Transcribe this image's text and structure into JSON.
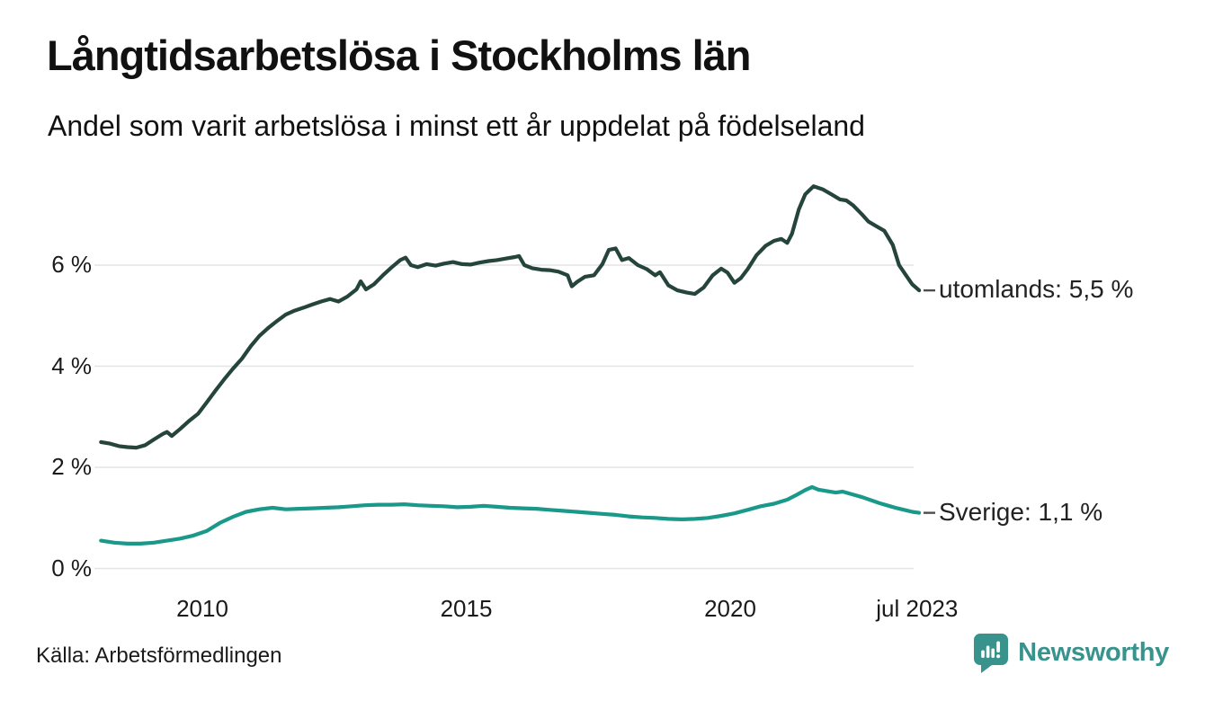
{
  "header": {
    "title": "Långtidsarbetslösa i Stockholms län",
    "subtitle": "Andel som varit arbetslösa i minst ett år uppdelat på födelseland"
  },
  "chart_data": {
    "type": "line",
    "title": "Långtidsarbetslösa i Stockholms län",
    "subtitle": "Andel som varit arbetslösa i minst ett år uppdelat på födelseland",
    "unit": "%",
    "grid": "horizontal",
    "xlim": [
      2008.0,
      2023.66
    ],
    "ylim": [
      0,
      8.2
    ],
    "x_ticks": [
      {
        "label": "2010",
        "year": 2010
      },
      {
        "label": "2015",
        "year": 2015
      },
      {
        "label": "2020",
        "year": 2020
      },
      {
        "label": "jul 2023",
        "year": 2023.54
      }
    ],
    "y_ticks": [
      {
        "label": "0 %",
        "value": 0
      },
      {
        "label": "2 %",
        "value": 2
      },
      {
        "label": "4 %",
        "value": 4
      },
      {
        "label": "6 %",
        "value": 6
      }
    ],
    "series": [
      {
        "name": "utomlands",
        "label": "utomlands: 5,5 %",
        "last_value_text": "5,5 %",
        "color": "#24443c",
        "points": [
          [
            2008.08,
            2.5
          ],
          [
            2008.25,
            2.47
          ],
          [
            2008.42,
            2.42
          ],
          [
            2008.58,
            2.4
          ],
          [
            2008.75,
            2.39
          ],
          [
            2008.92,
            2.44
          ],
          [
            2009.08,
            2.55
          ],
          [
            2009.25,
            2.66
          ],
          [
            2009.33,
            2.7
          ],
          [
            2009.42,
            2.62
          ],
          [
            2009.58,
            2.76
          ],
          [
            2009.75,
            2.92
          ],
          [
            2009.92,
            3.06
          ],
          [
            2010.08,
            3.28
          ],
          [
            2010.25,
            3.52
          ],
          [
            2010.42,
            3.75
          ],
          [
            2010.58,
            3.95
          ],
          [
            2010.75,
            4.15
          ],
          [
            2010.92,
            4.4
          ],
          [
            2011.08,
            4.6
          ],
          [
            2011.25,
            4.76
          ],
          [
            2011.42,
            4.9
          ],
          [
            2011.58,
            5.02
          ],
          [
            2011.75,
            5.1
          ],
          [
            2011.92,
            5.16
          ],
          [
            2012.08,
            5.22
          ],
          [
            2012.25,
            5.28
          ],
          [
            2012.42,
            5.33
          ],
          [
            2012.58,
            5.28
          ],
          [
            2012.75,
            5.38
          ],
          [
            2012.92,
            5.52
          ],
          [
            2013.0,
            5.68
          ],
          [
            2013.1,
            5.52
          ],
          [
            2013.25,
            5.62
          ],
          [
            2013.42,
            5.8
          ],
          [
            2013.58,
            5.95
          ],
          [
            2013.75,
            6.1
          ],
          [
            2013.85,
            6.15
          ],
          [
            2013.95,
            6.0
          ],
          [
            2014.08,
            5.96
          ],
          [
            2014.25,
            6.02
          ],
          [
            2014.42,
            5.99
          ],
          [
            2014.58,
            6.03
          ],
          [
            2014.75,
            6.06
          ],
          [
            2014.92,
            6.02
          ],
          [
            2015.08,
            6.01
          ],
          [
            2015.25,
            6.05
          ],
          [
            2015.42,
            6.08
          ],
          [
            2015.58,
            6.1
          ],
          [
            2015.75,
            6.13
          ],
          [
            2015.92,
            6.16
          ],
          [
            2016.0,
            6.18
          ],
          [
            2016.1,
            6.0
          ],
          [
            2016.25,
            5.94
          ],
          [
            2016.42,
            5.91
          ],
          [
            2016.58,
            5.9
          ],
          [
            2016.75,
            5.87
          ],
          [
            2016.92,
            5.8
          ],
          [
            2017.0,
            5.58
          ],
          [
            2017.1,
            5.67
          ],
          [
            2017.25,
            5.77
          ],
          [
            2017.42,
            5.8
          ],
          [
            2017.58,
            6.02
          ],
          [
            2017.7,
            6.3
          ],
          [
            2017.83,
            6.33
          ],
          [
            2017.95,
            6.1
          ],
          [
            2018.08,
            6.14
          ],
          [
            2018.25,
            6.0
          ],
          [
            2018.42,
            5.92
          ],
          [
            2018.58,
            5.8
          ],
          [
            2018.67,
            5.86
          ],
          [
            2018.83,
            5.6
          ],
          [
            2019.0,
            5.5
          ],
          [
            2019.17,
            5.46
          ],
          [
            2019.33,
            5.43
          ],
          [
            2019.5,
            5.56
          ],
          [
            2019.67,
            5.8
          ],
          [
            2019.83,
            5.93
          ],
          [
            2019.95,
            5.85
          ],
          [
            2020.08,
            5.65
          ],
          [
            2020.2,
            5.74
          ],
          [
            2020.33,
            5.92
          ],
          [
            2020.5,
            6.2
          ],
          [
            2020.67,
            6.38
          ],
          [
            2020.83,
            6.48
          ],
          [
            2020.97,
            6.52
          ],
          [
            2021.08,
            6.44
          ],
          [
            2021.17,
            6.62
          ],
          [
            2021.3,
            7.1
          ],
          [
            2021.42,
            7.4
          ],
          [
            2021.58,
            7.56
          ],
          [
            2021.75,
            7.5
          ],
          [
            2021.92,
            7.4
          ],
          [
            2022.08,
            7.3
          ],
          [
            2022.2,
            7.28
          ],
          [
            2022.33,
            7.18
          ],
          [
            2022.5,
            7.0
          ],
          [
            2022.62,
            6.86
          ],
          [
            2022.75,
            6.78
          ],
          [
            2022.92,
            6.68
          ],
          [
            2023.08,
            6.4
          ],
          [
            2023.2,
            6.0
          ],
          [
            2023.33,
            5.8
          ],
          [
            2023.45,
            5.62
          ],
          [
            2023.58,
            5.5
          ]
        ]
      },
      {
        "name": "Sverige",
        "label": "Sverige: 1,1 %",
        "last_value_text": "1,1 %",
        "color": "#1a998a",
        "points": [
          [
            2008.08,
            0.55
          ],
          [
            2008.33,
            0.51
          ],
          [
            2008.58,
            0.49
          ],
          [
            2008.83,
            0.49
          ],
          [
            2009.08,
            0.51
          ],
          [
            2009.33,
            0.55
          ],
          [
            2009.58,
            0.59
          ],
          [
            2009.83,
            0.65
          ],
          [
            2010.08,
            0.74
          ],
          [
            2010.33,
            0.9
          ],
          [
            2010.58,
            1.02
          ],
          [
            2010.83,
            1.12
          ],
          [
            2011.08,
            1.17
          ],
          [
            2011.33,
            1.2
          ],
          [
            2011.58,
            1.17
          ],
          [
            2011.83,
            1.18
          ],
          [
            2012.08,
            1.19
          ],
          [
            2012.33,
            1.2
          ],
          [
            2012.58,
            1.21
          ],
          [
            2012.83,
            1.23
          ],
          [
            2013.08,
            1.25
          ],
          [
            2013.33,
            1.26
          ],
          [
            2013.58,
            1.26
          ],
          [
            2013.83,
            1.27
          ],
          [
            2014.08,
            1.25
          ],
          [
            2014.33,
            1.24
          ],
          [
            2014.58,
            1.23
          ],
          [
            2014.83,
            1.21
          ],
          [
            2015.08,
            1.22
          ],
          [
            2015.33,
            1.24
          ],
          [
            2015.58,
            1.22
          ],
          [
            2015.83,
            1.2
          ],
          [
            2016.08,
            1.19
          ],
          [
            2016.33,
            1.18
          ],
          [
            2016.58,
            1.16
          ],
          [
            2016.83,
            1.14
          ],
          [
            2017.08,
            1.12
          ],
          [
            2017.33,
            1.1
          ],
          [
            2017.58,
            1.08
          ],
          [
            2017.83,
            1.06
          ],
          [
            2018.08,
            1.03
          ],
          [
            2018.33,
            1.01
          ],
          [
            2018.58,
            1.0
          ],
          [
            2018.83,
            0.98
          ],
          [
            2019.08,
            0.97
          ],
          [
            2019.33,
            0.98
          ],
          [
            2019.58,
            1.0
          ],
          [
            2019.83,
            1.04
          ],
          [
            2020.08,
            1.09
          ],
          [
            2020.33,
            1.16
          ],
          [
            2020.58,
            1.23
          ],
          [
            2020.83,
            1.28
          ],
          [
            2021.08,
            1.36
          ],
          [
            2021.25,
            1.45
          ],
          [
            2021.42,
            1.55
          ],
          [
            2021.55,
            1.61
          ],
          [
            2021.67,
            1.56
          ],
          [
            2021.83,
            1.53
          ],
          [
            2022.0,
            1.5
          ],
          [
            2022.13,
            1.52
          ],
          [
            2022.33,
            1.46
          ],
          [
            2022.5,
            1.41
          ],
          [
            2022.67,
            1.35
          ],
          [
            2022.83,
            1.29
          ],
          [
            2023.0,
            1.24
          ],
          [
            2023.17,
            1.19
          ],
          [
            2023.33,
            1.15
          ],
          [
            2023.45,
            1.12
          ],
          [
            2023.58,
            1.1
          ]
        ]
      }
    ],
    "colors": {
      "grid": "#e4e4e4",
      "annotation_dash": "#4d4d4d",
      "text": "#1a1a1a",
      "brand_teal": "#38938d"
    }
  },
  "footer": {
    "source": "Källa: Arbetsförmedlingen",
    "brand": "Newsworthy"
  }
}
